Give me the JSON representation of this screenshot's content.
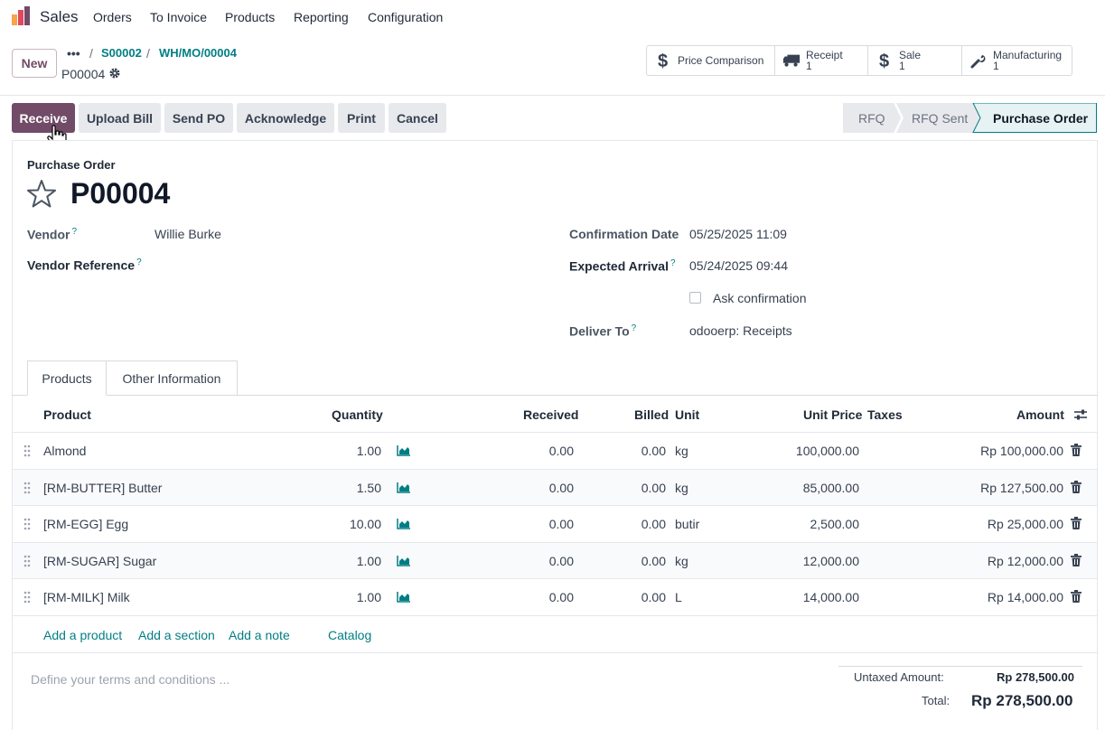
{
  "app": {
    "name": "Sales",
    "nav": [
      "Orders",
      "To Invoice",
      "Products",
      "Reporting",
      "Configuration"
    ]
  },
  "control": {
    "new_label": "New",
    "breadcrumb": [
      "S00002",
      "WH/MO/00004"
    ],
    "record_name": "P00004",
    "smart_buttons": [
      {
        "label": "Price Comparison",
        "count": "",
        "icon": "dollar-icon"
      },
      {
        "label": "Receipt",
        "count": "1",
        "icon": "truck-icon"
      },
      {
        "label": "Sale",
        "count": "1",
        "icon": "dollar-icon"
      },
      {
        "label": "Manufacturing",
        "count": "1",
        "icon": "wrench-icon"
      }
    ]
  },
  "actions": [
    "Receive",
    "Upload Bill",
    "Send PO",
    "Acknowledge",
    "Print",
    "Cancel"
  ],
  "status": {
    "stages": [
      "RFQ",
      "RFQ Sent",
      "Purchase Order"
    ],
    "current": "Purchase Order"
  },
  "form": {
    "type_label": "Purchase Order",
    "title": "P00004",
    "vendor_label": "Vendor",
    "vendor": "Willie Burke",
    "vendor_ref_label": "Vendor Reference",
    "confirmation_date_label": "Confirmation Date",
    "confirmation_date": "05/25/2025 11:09",
    "expected_arrival_label": "Expected Arrival",
    "expected_arrival": "05/24/2025 09:44",
    "ask_confirmation_label": "Ask confirmation",
    "deliver_to_label": "Deliver To",
    "deliver_to": "odooerp: Receipts",
    "help_mark": "?"
  },
  "tabs": [
    "Products",
    "Other Information"
  ],
  "table": {
    "headers": {
      "product": "Product",
      "quantity": "Quantity",
      "received": "Received",
      "billed": "Billed",
      "unit": "Unit",
      "unit_price": "Unit Price",
      "taxes": "Taxes",
      "amount": "Amount"
    },
    "rows": [
      {
        "product": "Almond",
        "quantity": "1.00",
        "received": "0.00",
        "billed": "0.00",
        "unit": "kg",
        "unit_price": "100,000.00",
        "amount": "Rp 100,000.00"
      },
      {
        "product": "[RM-BUTTER] Butter",
        "quantity": "1.50",
        "received": "0.00",
        "billed": "0.00",
        "unit": "kg",
        "unit_price": "85,000.00",
        "amount": "Rp 127,500.00"
      },
      {
        "product": "[RM-EGG] Egg",
        "quantity": "10.00",
        "received": "0.00",
        "billed": "0.00",
        "unit": "butir",
        "unit_price": "2,500.00",
        "amount": "Rp 25,000.00"
      },
      {
        "product": "[RM-SUGAR] Sugar",
        "quantity": "1.00",
        "received": "0.00",
        "billed": "0.00",
        "unit": "kg",
        "unit_price": "12,000.00",
        "amount": "Rp 12,000.00"
      },
      {
        "product": "[RM-MILK] Milk",
        "quantity": "1.00",
        "received": "0.00",
        "billed": "0.00",
        "unit": "L",
        "unit_price": "14,000.00",
        "amount": "Rp 14,000.00"
      }
    ],
    "add_links": [
      "Add a product",
      "Add a section",
      "Add a note",
      "Catalog"
    ]
  },
  "footer": {
    "terms_placeholder": "Define your terms and conditions ...",
    "untaxed_label": "Untaxed Amount:",
    "untaxed_value": "Rp 278,500.00",
    "total_label": "Total:",
    "total_value": "Rp 278,500.00"
  },
  "colors": {
    "brand": "#714b67",
    "link": "#017e84"
  }
}
